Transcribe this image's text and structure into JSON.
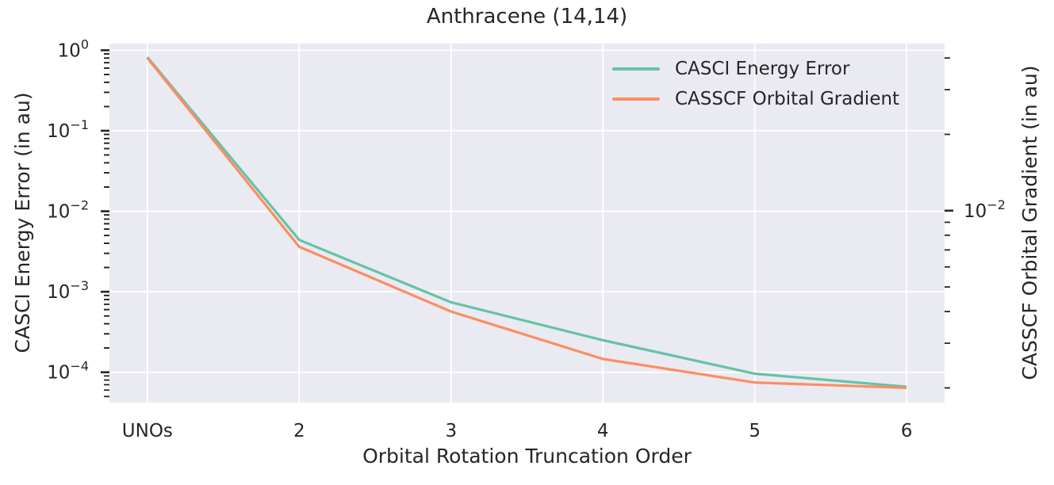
{
  "figure": {
    "background": "#ffffff"
  },
  "chart_data": {
    "type": "line",
    "title": "Anthracene (14,14)",
    "xlabel": "Orbital Rotation Truncation Order",
    "x_tick_labels": [
      "UNOs",
      "2",
      "3",
      "4",
      "5",
      "6"
    ],
    "x_values": [
      1,
      2,
      3,
      4,
      5,
      6
    ],
    "xlim": [
      0.75,
      6.25
    ],
    "grid": true,
    "background_color": "#eaeaf2",
    "grid_color": "#ffffff",
    "text_color": "#262626",
    "tick_color": "#262626",
    "left_axis": {
      "label": "CASCI Energy Error (in au)",
      "scale": "log",
      "lim": [
        4.2e-05,
        1.21
      ],
      "major_tick_exponents": [
        0,
        -1,
        -2,
        -3,
        -4
      ]
    },
    "right_axis": {
      "label": "CASSCF Orbital Gradient (in au)",
      "scale": "log",
      "lim": [
        0.00175,
        0.0456
      ],
      "major_tick_exponents": [
        -2
      ]
    },
    "series": [
      {
        "name": "CASCI Energy Error",
        "axis": "left",
        "color": "#66c2a5",
        "values": [
          0.82,
          0.0044,
          0.00074,
          0.00025,
          9.6e-05,
          6.6e-05
        ]
      },
      {
        "name": "CASSCF Orbital Gradient",
        "axis": "right",
        "color": "#fc8d62",
        "values": [
          0.04,
          0.0072,
          0.004,
          0.0026,
          0.0021,
          0.002
        ]
      }
    ],
    "legend": {
      "position": "upper right",
      "frame": false
    }
  }
}
